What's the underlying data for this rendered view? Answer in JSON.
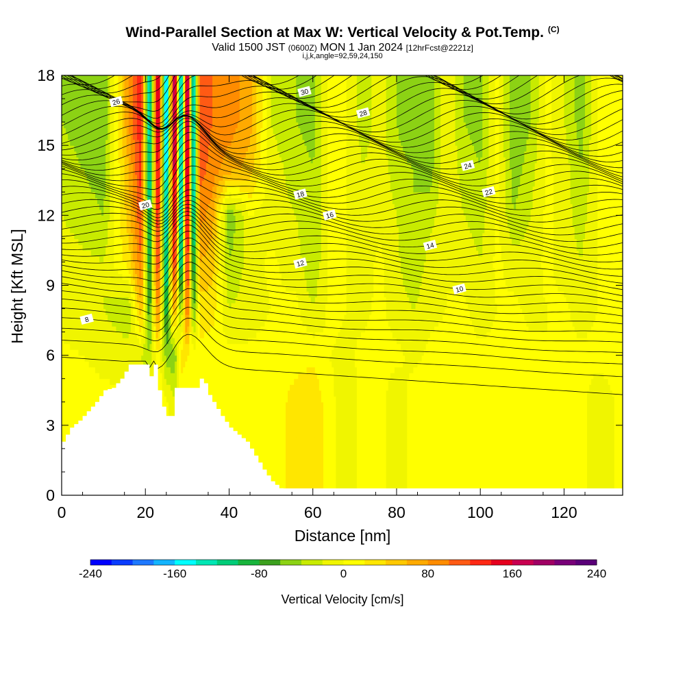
{
  "header": {
    "title": "Wind-Parallel Section at Max W: Vertical Velocity & Pot.Temp.",
    "title_mark": "(C)",
    "valid_prefix": "Valid 1500 JST",
    "valid_utc": "(0600Z)",
    "valid_date": "MON 1 Jan 2024",
    "forecast": "[12hrFcst@2221z]",
    "indices": "i,j,k,angle=92,59,24,150"
  },
  "chart_data": {
    "type": "heatmap",
    "xlabel": "Distance [nm]",
    "ylabel": "Height [Kft MSL]",
    "xlim": [
      0,
      134
    ],
    "ylim": [
      0,
      18
    ],
    "x_ticks": [
      "0",
      "20",
      "40",
      "60",
      "80",
      "100",
      "120"
    ],
    "y_ticks": [
      "0",
      "3",
      "6",
      "9",
      "12",
      "15",
      "18"
    ],
    "colorbar": {
      "label": "Vertical Velocity [cm/s]",
      "range": [
        -240,
        240
      ],
      "ticks": [
        "-240",
        "-160",
        "-80",
        "0",
        "80",
        "160",
        "240"
      ],
      "colors": [
        "#0000ff",
        "#0a3cff",
        "#1e78ff",
        "#14b4ff",
        "#00ffff",
        "#00e6b4",
        "#00cc78",
        "#18b43c",
        "#3ca01e",
        "#8cd214",
        "#c8eb00",
        "#f0f500",
        "#ffff00",
        "#ffe600",
        "#ffc800",
        "#ffaa00",
        "#ff8c00",
        "#ff5a14",
        "#ff2814",
        "#e6001e",
        "#c80050",
        "#a00064",
        "#780078",
        "#5a0078"
      ]
    },
    "vertical_velocity_cm_s": {
      "x": [
        0,
        10,
        16,
        19,
        21,
        23,
        25,
        27,
        28.5,
        30,
        31.5,
        33,
        36,
        40,
        45,
        50,
        56,
        60,
        64,
        68,
        72,
        76,
        80,
        84,
        88,
        92,
        96,
        100,
        104,
        108,
        112,
        116,
        120,
        124,
        128,
        134
      ],
      "z": [
        0,
        4,
        6,
        8,
        10,
        12,
        14,
        16,
        18
      ],
      "values": [
        [
          10,
          5,
          5,
          8,
          10,
          12,
          6,
          -15,
          5,
          8,
          4,
          15,
          6,
          4,
          10,
          5,
          30,
          40,
          5,
          -10,
          5,
          8,
          -15,
          10,
          5,
          8,
          6,
          4,
          10,
          5,
          8,
          4,
          6,
          5,
          -10,
          5
        ],
        [
          10,
          5,
          5,
          8,
          10,
          12,
          6,
          -15,
          5,
          8,
          4,
          15,
          6,
          4,
          10,
          5,
          30,
          40,
          5,
          -10,
          5,
          8,
          -15,
          10,
          5,
          8,
          6,
          4,
          10,
          5,
          8,
          4,
          6,
          5,
          -10,
          5
        ],
        [
          5,
          -5,
          -10,
          -20,
          -40,
          20,
          -50,
          -60,
          30,
          20,
          10,
          15,
          5,
          5,
          5,
          8,
          10,
          15,
          0,
          -5,
          5,
          5,
          5,
          -5,
          5,
          5,
          5,
          5,
          5,
          5,
          5,
          0,
          5,
          5,
          5,
          5
        ],
        [
          -10,
          -20,
          -40,
          60,
          -80,
          100,
          -110,
          80,
          -60,
          120,
          -70,
          30,
          30,
          -20,
          -10,
          0,
          5,
          -20,
          5,
          0,
          -5,
          5,
          -10,
          -20,
          -5,
          0,
          5,
          -10,
          0,
          5,
          -5,
          0,
          5,
          -10,
          0,
          5
        ],
        [
          -10,
          -20,
          30,
          100,
          -110,
          140,
          -150,
          160,
          -160,
          160,
          -120,
          60,
          50,
          -40,
          -10,
          5,
          -10,
          -40,
          5,
          0,
          -10,
          5,
          -15,
          -40,
          -10,
          0,
          -10,
          -20,
          5,
          -10,
          -10,
          5,
          -10,
          -20,
          0,
          5
        ],
        [
          -20,
          -40,
          50,
          120,
          -130,
          160,
          -170,
          190,
          -190,
          200,
          -160,
          90,
          70,
          -60,
          0,
          -10,
          -20,
          -40,
          5,
          0,
          -15,
          -5,
          -20,
          -40,
          -30,
          0,
          -20,
          -30,
          5,
          -40,
          -20,
          5,
          -10,
          -30,
          0,
          5
        ],
        [
          -30,
          -50,
          60,
          130,
          -150,
          180,
          -190,
          210,
          -200,
          220,
          -170,
          110,
          90,
          70,
          50,
          -10,
          -30,
          -40,
          5,
          0,
          -20,
          -10,
          -30,
          -40,
          -50,
          0,
          -30,
          -40,
          5,
          -50,
          -30,
          5,
          -10,
          -40,
          0,
          5
        ],
        [
          -40,
          -60,
          80,
          140,
          -160,
          200,
          -200,
          230,
          -210,
          230,
          -170,
          120,
          100,
          90,
          70,
          -20,
          -40,
          -50,
          5,
          0,
          -30,
          -10,
          -40,
          -60,
          -50,
          0,
          -40,
          -50,
          5,
          -60,
          -40,
          5,
          -20,
          -50,
          0,
          5
        ],
        [
          -40,
          -60,
          80,
          140,
          -160,
          200,
          -200,
          230,
          -210,
          230,
          -170,
          120,
          100,
          90,
          70,
          -20,
          -40,
          -50,
          5,
          0,
          -30,
          -10,
          -40,
          -60,
          -50,
          0,
          -40,
          -50,
          5,
          -60,
          -40,
          5,
          -20,
          -50,
          0,
          5
        ]
      ]
    },
    "terrain_kft": {
      "x": [
        0,
        2,
        4,
        6,
        8,
        10,
        12,
        14,
        16,
        18,
        20,
        21,
        22,
        23,
        24,
        25,
        26,
        27,
        28,
        29,
        30,
        31,
        32,
        33,
        34,
        35,
        36,
        38,
        40,
        42,
        44,
        46,
        48,
        50,
        52,
        54,
        56,
        58,
        134
      ],
      "y": [
        2.3,
        2.9,
        3.2,
        3.6,
        4.0,
        4.5,
        4.6,
        5.0,
        5.6,
        5.6,
        5.6,
        5.1,
        5.6,
        4.5,
        3.8,
        3.4,
        3.4,
        4.6,
        4.6,
        4.6,
        4.6,
        4.6,
        4.6,
        5.0,
        4.8,
        4.3,
        4.0,
        3.4,
        2.9,
        2.6,
        2.3,
        1.7,
        1.1,
        0.6,
        0.3,
        0.0,
        0.0,
        0.0,
        0.0
      ]
    },
    "potential_temperature_contours": {
      "labels": [
        "8",
        "10",
        "12",
        "14",
        "16",
        "18",
        "20",
        "22",
        "24",
        "26",
        "28",
        "30"
      ],
      "count": 48,
      "base_kft": 5.2,
      "top_kft": 18.5
    }
  }
}
